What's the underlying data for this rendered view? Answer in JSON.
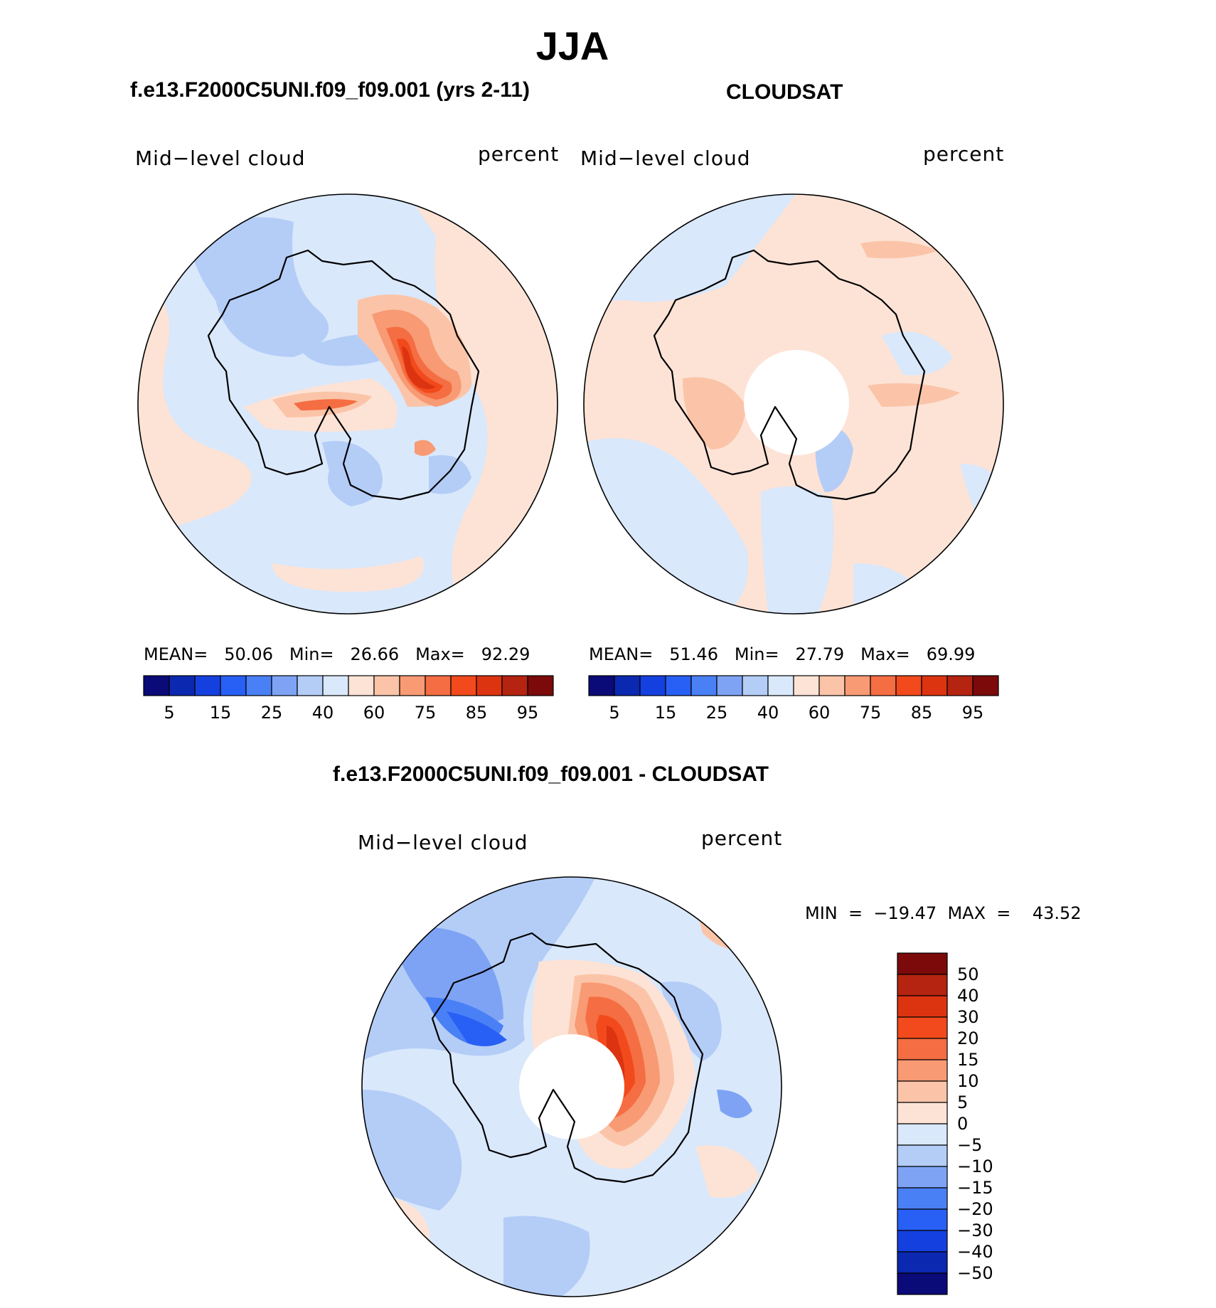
{
  "title": "JJA",
  "panels": [
    {
      "case_title": "f.e13.F2000C5UNI.f09_f09.001 (yrs 2-11)",
      "variable": "Mid−level  cloud",
      "units": "percent",
      "stats": {
        "mean_label": "MEAN=",
        "mean": "50.06",
        "min_label": "Min=",
        "min": "26.66",
        "max_label": "Max=",
        "max": "92.29"
      }
    },
    {
      "case_title": "CLOUDSAT",
      "variable": "Mid−level  cloud",
      "units": "percent",
      "stats": {
        "mean_label": "MEAN=",
        "mean": "51.46",
        "min_label": "Min=",
        "min": "27.79",
        "max_label": "Max=",
        "max": "69.99"
      }
    }
  ],
  "diff_panel": {
    "case_title": "f.e13.F2000C5UNI.f09_f09.001 - CLOUDSAT",
    "variable": "Mid−level  cloud",
    "units": "percent",
    "minmax_text": "MIN  =  −19.47  MAX  =    43.52"
  },
  "colors": {
    "abs_scale": [
      "#0a0a78",
      "#0b28b0",
      "#1540e0",
      "#2860f5",
      "#4a80f5",
      "#7ea3f5",
      "#b4cdf7",
      "#d9e8fb",
      "#fde3d6",
      "#fbc4a8",
      "#f89a74",
      "#f56d42",
      "#f24a1c",
      "#dc3410",
      "#b42410",
      "#7c0a0a"
    ],
    "diff_scale": [
      "#0a0a78",
      "#0b28b0",
      "#1540e0",
      "#2860f5",
      "#4a80f5",
      "#7ea3f5",
      "#b4cdf7",
      "#d9e8fb",
      "#fde3d6",
      "#fbc4a8",
      "#f89a74",
      "#f56d42",
      "#f24a1c",
      "#dc3410",
      "#b42410",
      "#7c0a0a"
    ],
    "land_outline": "#000000"
  },
  "colorbar_ticks_abs": [
    "5",
    "15",
    "25",
    "40",
    "60",
    "75",
    "85",
    "95"
  ],
  "colorbar_ticks_diff": [
    "50",
    "40",
    "30",
    "20",
    "15",
    "10",
    "5",
    "0",
    "−5",
    "−10",
    "−15",
    "−20",
    "−30",
    "−40",
    "−50"
  ],
  "chart_data": [
    {
      "type": "heatmap",
      "projection": "south polar stereographic",
      "title": "f.e13.F2000C5UNI.f09_f09.001 (yrs 2-11)",
      "variable": "Mid-level cloud",
      "units": "percent",
      "mean": 50.06,
      "min": 26.66,
      "max": 92.29,
      "contour_levels": [
        5,
        10,
        15,
        20,
        25,
        30,
        40,
        50,
        60,
        65,
        75,
        80,
        85,
        90,
        95
      ]
    },
    {
      "type": "heatmap",
      "projection": "south polar stereographic",
      "title": "CLOUDSAT",
      "variable": "Mid-level cloud",
      "units": "percent",
      "mean": 51.46,
      "min": 27.79,
      "max": 69.99,
      "contour_levels": [
        5,
        10,
        15,
        20,
        25,
        30,
        40,
        50,
        60,
        65,
        75,
        80,
        85,
        90,
        95
      ]
    },
    {
      "type": "heatmap",
      "projection": "south polar stereographic",
      "title": "f.e13.F2000C5UNI.f09_f09.001 - CLOUDSAT",
      "variable": "Mid-level cloud",
      "units": "percent",
      "min": -19.47,
      "max": 43.52,
      "contour_levels": [
        -50,
        -40,
        -30,
        -20,
        -15,
        -10,
        -5,
        0,
        5,
        10,
        15,
        20,
        30,
        40,
        50
      ]
    }
  ]
}
